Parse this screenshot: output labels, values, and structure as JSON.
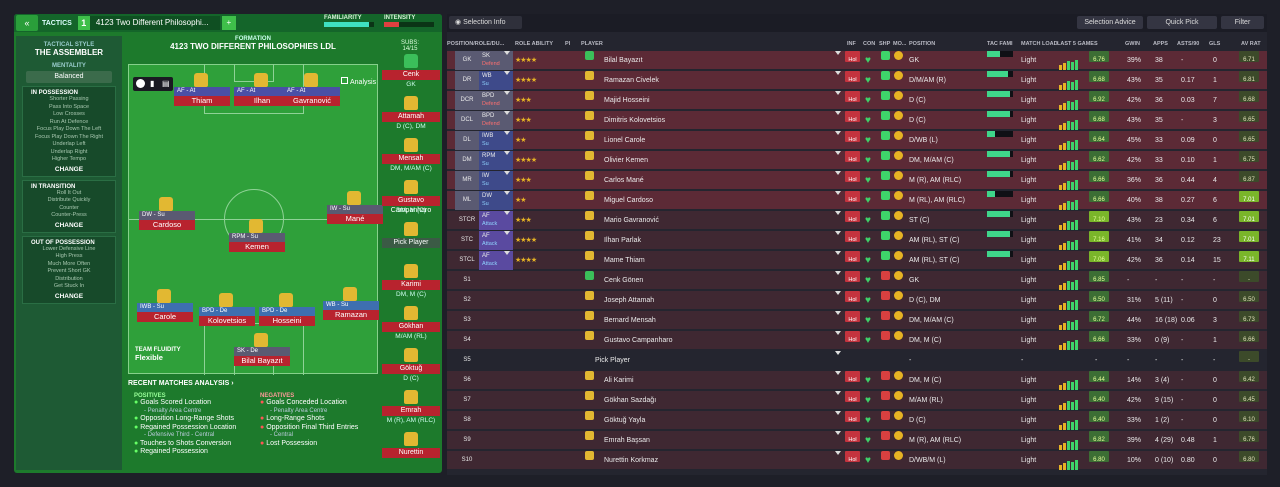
{
  "left": {
    "tactics_label": "TACTICS",
    "slot": "1",
    "tactic_name": "4123 Two Different Philosophi...",
    "familiarity": "FAMILIARITY",
    "intensity": "INTENSITY",
    "tactical_style_label": "TACTICAL STYLE",
    "tactical_style": "THE ASSEMBLER",
    "mentality_label": "MENTALITY",
    "mentality": "Balanced",
    "in_possession": {
      "title": "IN POSSESSION",
      "items": [
        "Shorter Passing",
        "Pass Into Space",
        "Low Crosses",
        "Run At Defence",
        "Focus Play Down The Left",
        "Focus Play Down The Right",
        "Underlap Left",
        "Underlap Right",
        "Higher Tempo"
      ],
      "change": "CHANGE"
    },
    "in_transition": {
      "title": "IN TRANSITION",
      "items": [
        "Roll It Out",
        "Distribute Quickly",
        "Counter",
        "Counter-Press"
      ],
      "change": "CHANGE"
    },
    "out_of_possession": {
      "title": "OUT OF POSSESSION",
      "items": [
        "Lower Defensive Line",
        "High Press",
        "Much More Often",
        "Prevent Short GK",
        "Distribution",
        "Get Stuck In"
      ],
      "change": "CHANGE"
    },
    "formation_label": "FORMATION",
    "formation_name": "4123 TWO DIFFERENT PHILOSOPHIES LDL",
    "subs_label": "SUBS:",
    "subs_count": "14/15",
    "analysis_btn": "Analysis",
    "team_fluidity_label": "TEAM FLUIDITY",
    "team_fluidity": "Flexible",
    "pitch": [
      {
        "role": "AF - At",
        "name": "Thiam"
      },
      {
        "role": "AF - At",
        "name": "Ilhan"
      },
      {
        "role": "AF - At",
        "name": "Gavranović"
      },
      {
        "role": "DW - Su",
        "name": "Cardoso"
      },
      {
        "role": "IW - Su",
        "name": "Mané"
      },
      {
        "role": "RPM - Su",
        "name": "Kemen"
      },
      {
        "role": "IWB - Su",
        "name": "Carole"
      },
      {
        "role": "BPD - De",
        "name": "Kolovetsios"
      },
      {
        "role": "BPD - De",
        "name": "Hosseini"
      },
      {
        "role": "WB - Su",
        "name": "Ramazan"
      },
      {
        "role": "SK - De",
        "name": "Bilal Bayazıt"
      }
    ],
    "subs": [
      {
        "name": "Cenk",
        "pos": "GK"
      },
      {
        "name": "Attamah",
        "pos": "D (C), DM"
      },
      {
        "name": "Mensah",
        "pos": "DM, M/AM (C)"
      },
      {
        "name": "Gustavo Campanharo",
        "pos": "DM, M (C)"
      },
      {
        "name": "Pick Player",
        "pos": ""
      },
      {
        "name": "Karimi",
        "pos": "DM, M (C)"
      },
      {
        "name": "Gökhan",
        "pos": "M/AM (RL)"
      },
      {
        "name": "Göktuğ",
        "pos": "D (C)"
      },
      {
        "name": "Emrah",
        "pos": "M (R), AM (RLC)"
      },
      {
        "name": "Nurettin",
        "pos": ""
      }
    ],
    "analysis": {
      "title": "RECENT MATCHES ANALYSIS",
      "positives_label": "POSITIVES",
      "negatives_label": "NEGATIVES",
      "positives": [
        {
          "t": "Goals Scored Location",
          "s": "- Penalty Area Centre"
        },
        {
          "t": "Opposition Long-Range Shots",
          "s": ""
        },
        {
          "t": "Regained Possession Location",
          "s": "- Defensive Third - Central"
        },
        {
          "t": "Touches to Shots Conversion",
          "s": ""
        },
        {
          "t": "Regained Possession",
          "s": ""
        }
      ],
      "negatives": [
        {
          "t": "Goals Conceded Location",
          "s": "- Penalty Area Centre"
        },
        {
          "t": "Long-Range Shots",
          "s": ""
        },
        {
          "t": "Opposition Final Third Entries",
          "s": "- Central"
        },
        {
          "t": "Lost Possession",
          "s": ""
        }
      ]
    }
  },
  "right": {
    "selection_info": "Selection Info",
    "selection_advice": "Selection Advice",
    "quick_pick": "Quick Pick",
    "filter": "Filter",
    "headers": [
      "POSITION/ROLE/DU...",
      "ROLE ABILITY",
      "PI",
      "PLAYER",
      "INF",
      "CON",
      "SHP",
      "MO...",
      "POSITION",
      "TAC FAMI",
      "MATCH LOAD",
      "LAST 5 GAMES",
      "GWIN",
      "APPS",
      "ASTS/90",
      "GLS",
      "AV RAT"
    ],
    "rows": [
      {
        "pos": "GK",
        "role": "SK",
        "duty": "Defend",
        "dc": "d",
        "stars": "★★★★",
        "name": "Bilal Bayazıt",
        "inf": "Hol",
        "position": "GK",
        "load": "Light",
        "rating": "6.76",
        "gwin": "39%",
        "apps": "38",
        "asts": "-",
        "gls": "0",
        "av": "6.71",
        "tac": 0.5
      },
      {
        "pos": "DR",
        "role": "WB",
        "duty": "Su",
        "dc": "s",
        "stars": "★★★★",
        "name": "Ramazan Civelek",
        "inf": "Hol",
        "position": "D/M/AM (R)",
        "load": "Light",
        "rating": "6.68",
        "gwin": "43%",
        "apps": "35",
        "asts": "0.17",
        "gls": "1",
        "av": "6.81",
        "tac": 0.8
      },
      {
        "pos": "DCR",
        "role": "BPD",
        "duty": "Defend",
        "dc": "d",
        "stars": "★★★",
        "name": "Majid Hosseini",
        "inf": "Hol",
        "position": "D (C)",
        "load": "Light",
        "rating": "6.92",
        "gwin": "42%",
        "apps": "36",
        "asts": "0.03",
        "gls": "7",
        "av": "6.68",
        "tac": 0.9
      },
      {
        "pos": "DCL",
        "role": "BPD",
        "duty": "Defend",
        "dc": "d",
        "stars": "★★★",
        "name": "Dimitris Kolovetsios",
        "inf": "Hol",
        "position": "D (C)",
        "load": "Light",
        "rating": "6.68",
        "gwin": "43%",
        "apps": "35",
        "asts": "-",
        "gls": "3",
        "av": "6.65",
        "tac": 0.9
      },
      {
        "pos": "DL",
        "role": "IWB",
        "duty": "Su",
        "dc": "s",
        "stars": "★★",
        "name": "Lionel Carole",
        "inf": "Hol",
        "position": "D/WB (L)",
        "load": "Light",
        "rating": "6.64",
        "gwin": "45%",
        "apps": "33",
        "asts": "0.09",
        "gls": "0",
        "av": "6.65",
        "tac": 0.3
      },
      {
        "pos": "DM",
        "role": "RPM",
        "duty": "Su",
        "dc": "s",
        "stars": "★★★★",
        "name": "Olivier Kemen",
        "inf": "Hol",
        "position": "DM, M/AM (C)",
        "load": "Light",
        "rating": "6.62",
        "gwin": "42%",
        "apps": "33",
        "asts": "0.10",
        "gls": "1",
        "av": "6.75",
        "tac": 0.9
      },
      {
        "pos": "MR",
        "role": "IW",
        "duty": "Su",
        "dc": "s",
        "stars": "★★★",
        "name": "Carlos Mané",
        "inf": "Hol",
        "position": "M (R), AM (RLC)",
        "load": "Light",
        "rating": "6.66",
        "gwin": "36%",
        "apps": "36",
        "asts": "0.44",
        "gls": "4",
        "av": "6.87",
        "tac": 0.9
      },
      {
        "pos": "ML",
        "role": "DW",
        "duty": "Su",
        "dc": "s",
        "stars": "★★",
        "name": "Miguel Cardoso",
        "inf": "Hol",
        "position": "M (RL), AM (RLC)",
        "load": "Light",
        "rating": "6.66",
        "gwin": "40%",
        "apps": "38",
        "asts": "0.27",
        "gls": "6",
        "av": "7.01",
        "tac": 0.3
      },
      {
        "pos": "STCR",
        "role": "AF",
        "duty": "Attack",
        "dc": "a",
        "stars": "★★★",
        "name": "Mario Gavranović",
        "inf": "Hol",
        "position": "ST (C)",
        "load": "Light",
        "rating": "7.10",
        "gwin": "43%",
        "apps": "23",
        "asts": "0.34",
        "gls": "6",
        "av": "7.01",
        "tac": 0.9
      },
      {
        "pos": "STC",
        "role": "AF",
        "duty": "Attack",
        "dc": "a",
        "stars": "★★★★",
        "name": "Ilhan Parlak",
        "inf": "Hol",
        "position": "AM (RL), ST (C)",
        "load": "Light",
        "rating": "7.16",
        "gwin": "41%",
        "apps": "34",
        "asts": "0.12",
        "gls": "23",
        "av": "7.01",
        "tac": 0.9
      },
      {
        "pos": "STCL",
        "role": "AF",
        "duty": "Attack",
        "dc": "a",
        "stars": "★★★★",
        "name": "Mame Thiam",
        "inf": "Hol",
        "position": "AM (RL), ST (C)",
        "load": "Light",
        "rating": "7.06",
        "gwin": "42%",
        "apps": "36",
        "asts": "0.14",
        "gls": "15",
        "av": "7.11",
        "tac": 0.9
      },
      {
        "pos": "S1",
        "role": "",
        "duty": "",
        "dc": "",
        "stars": "",
        "name": "Cenk Gönen",
        "inf": "Hol",
        "position": "GK",
        "load": "Light",
        "rating": "6.85",
        "gwin": "-",
        "apps": "-",
        "asts": "-",
        "gls": "-",
        "av": "-",
        "tac": -1
      },
      {
        "pos": "S2",
        "role": "",
        "duty": "",
        "dc": "",
        "stars": "",
        "name": "Joseph Attamah",
        "inf": "Hol",
        "position": "D (C), DM",
        "load": "Light",
        "rating": "6.50",
        "gwin": "31%",
        "apps": "5 (11)",
        "asts": "-",
        "gls": "0",
        "av": "6.50",
        "tac": -1
      },
      {
        "pos": "S3",
        "role": "",
        "duty": "",
        "dc": "",
        "stars": "",
        "name": "Bernard Mensah",
        "inf": "Hol",
        "position": "DM, M/AM (C)",
        "load": "Light",
        "rating": "6.72",
        "gwin": "44%",
        "apps": "16 (18)",
        "asts": "0.06",
        "gls": "3",
        "av": "6.73",
        "tac": -1
      },
      {
        "pos": "S4",
        "role": "",
        "duty": "",
        "dc": "",
        "stars": "",
        "name": "Gustavo Campanharo",
        "inf": "Hol",
        "position": "DM, M (C)",
        "load": "Light",
        "rating": "6.66",
        "gwin": "33%",
        "apps": "0 (9)",
        "asts": "-",
        "gls": "1",
        "av": "6.66",
        "tac": -1
      },
      {
        "pos": "S5",
        "role": "",
        "duty": "",
        "dc": "",
        "stars": "",
        "name": "Pick Player",
        "inf": "",
        "position": "-",
        "load": "-",
        "rating": "-",
        "gwin": "-",
        "apps": "-",
        "asts": "-",
        "gls": "-",
        "av": "-",
        "tac": -1,
        "empty": true
      },
      {
        "pos": "S6",
        "role": "",
        "duty": "",
        "dc": "",
        "stars": "",
        "name": "Ali Karimi",
        "inf": "Hol",
        "position": "DM, M (C)",
        "load": "Light",
        "rating": "6.44",
        "gwin": "14%",
        "apps": "3 (4)",
        "asts": "-",
        "gls": "0",
        "av": "6.42",
        "tac": -1
      },
      {
        "pos": "S7",
        "role": "",
        "duty": "",
        "dc": "",
        "stars": "",
        "name": "Gökhan Sazdağı",
        "inf": "Hol",
        "position": "M/AM (RL)",
        "load": "Light",
        "rating": "6.40",
        "gwin": "42%",
        "apps": "9 (15)",
        "asts": "-",
        "gls": "0",
        "av": "6.45",
        "tac": -1
      },
      {
        "pos": "S8",
        "role": "",
        "duty": "",
        "dc": "",
        "stars": "",
        "name": "Göktuğ Yayla",
        "inf": "Hol",
        "position": "D (C)",
        "load": "Light",
        "rating": "6.40",
        "gwin": "33%",
        "apps": "1 (2)",
        "asts": "-",
        "gls": "0",
        "av": "6.10",
        "tac": -1
      },
      {
        "pos": "S9",
        "role": "",
        "duty": "",
        "dc": "",
        "stars": "",
        "name": "Emrah Başsan",
        "inf": "Hol",
        "position": "M (R), AM (RLC)",
        "load": "Light",
        "rating": "6.82",
        "gwin": "39%",
        "apps": "4 (29)",
        "asts": "0.48",
        "gls": "1",
        "av": "6.76",
        "tac": -1
      },
      {
        "pos": "S10",
        "role": "",
        "duty": "",
        "dc": "",
        "stars": "",
        "name": "Nurettin Korkmaz",
        "inf": "Hol",
        "position": "D/WB/M (L)",
        "load": "Light",
        "rating": "6.80",
        "gwin": "10%",
        "apps": "0 (10)",
        "asts": "0.80",
        "gls": "0",
        "av": "6.80",
        "tac": -1
      }
    ]
  }
}
